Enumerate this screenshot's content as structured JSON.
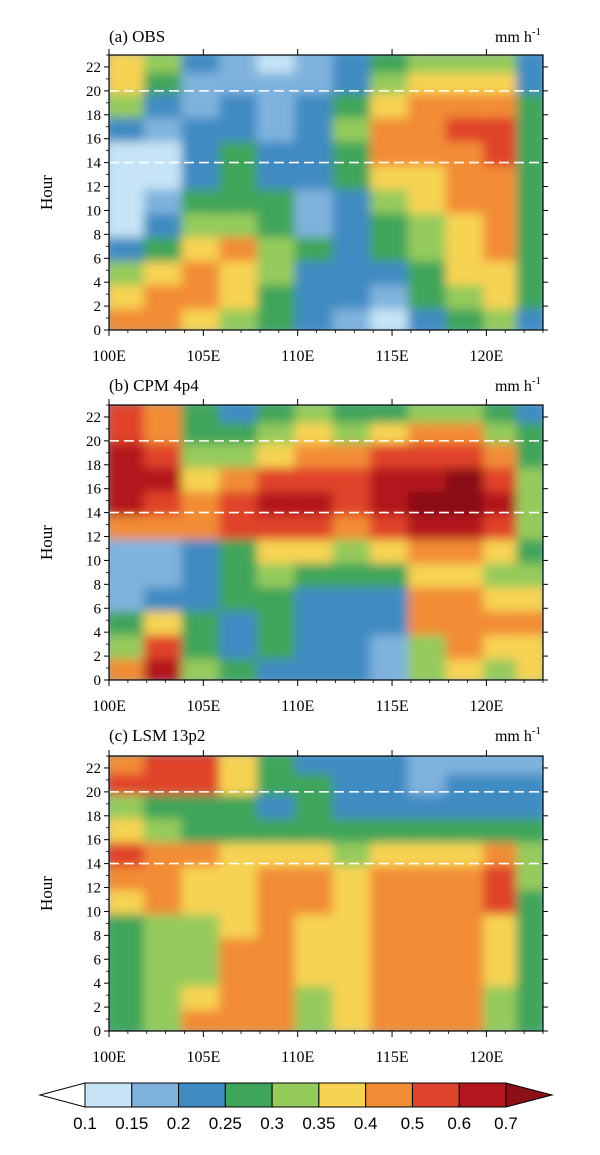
{
  "chart_data": [
    {
      "type": "heatmap",
      "title": "(a) OBS",
      "unit": "mm h",
      "unit_sup": "-1",
      "ylabel": "Hour",
      "xlabel": "",
      "x_range": [
        100,
        123
      ],
      "y_range": [
        0,
        23
      ],
      "x_ticks": [
        "100E",
        "105E",
        "110E",
        "115E",
        "120E"
      ],
      "x_tick_values": [
        100,
        105,
        110,
        115,
        120
      ],
      "y_ticks": [
        "0",
        "2",
        "4",
        "6",
        "8",
        "10",
        "12",
        "14",
        "16",
        "18",
        "20",
        "22"
      ],
      "y_tick_values": [
        0,
        2,
        4,
        6,
        8,
        10,
        12,
        14,
        16,
        18,
        20,
        22
      ],
      "reference_lines_hour": [
        14,
        20
      ],
      "x": [
        101,
        103,
        105,
        107,
        109,
        111,
        113,
        115,
        117,
        119,
        121,
        122.5
      ],
      "y": [
        1,
        3,
        5,
        7,
        9,
        11,
        13,
        15,
        17,
        19,
        21,
        22.5
      ],
      "z": [
        [
          0.4,
          0.42,
          0.38,
          0.3,
          0.25,
          0.2,
          0.18,
          0.12,
          0.2,
          0.25,
          0.32,
          0.2
        ],
        [
          0.35,
          0.4,
          0.45,
          0.35,
          0.25,
          0.22,
          0.2,
          0.18,
          0.25,
          0.3,
          0.35,
          0.25
        ],
        [
          0.3,
          0.35,
          0.42,
          0.38,
          0.3,
          0.22,
          0.2,
          0.2,
          0.28,
          0.35,
          0.38,
          0.25
        ],
        [
          0.2,
          0.28,
          0.35,
          0.4,
          0.32,
          0.25,
          0.22,
          0.25,
          0.3,
          0.35,
          0.4,
          0.25
        ],
        [
          0.12,
          0.2,
          0.3,
          0.32,
          0.25,
          0.15,
          0.2,
          0.28,
          0.32,
          0.38,
          0.42,
          0.25
        ],
        [
          0.1,
          0.15,
          0.25,
          0.28,
          0.25,
          0.15,
          0.22,
          0.32,
          0.35,
          0.4,
          0.4,
          0.25
        ],
        [
          0.1,
          0.12,
          0.22,
          0.28,
          0.22,
          0.2,
          0.25,
          0.35,
          0.38,
          0.45,
          0.48,
          0.25
        ],
        [
          0.12,
          0.1,
          0.2,
          0.25,
          0.2,
          0.22,
          0.28,
          0.4,
          0.42,
          0.48,
          0.55,
          0.25
        ],
        [
          0.2,
          0.15,
          0.2,
          0.22,
          0.18,
          0.22,
          0.3,
          0.4,
          0.45,
          0.5,
          0.5,
          0.25
        ],
        [
          0.3,
          0.2,
          0.18,
          0.2,
          0.15,
          0.2,
          0.25,
          0.35,
          0.4,
          0.45,
          0.42,
          0.25
        ],
        [
          0.35,
          0.25,
          0.18,
          0.18,
          0.15,
          0.18,
          0.22,
          0.3,
          0.35,
          0.38,
          0.35,
          0.2
        ],
        [
          0.38,
          0.3,
          0.2,
          0.15,
          0.12,
          0.15,
          0.2,
          0.25,
          0.3,
          0.32,
          0.3,
          0.2
        ]
      ]
    },
    {
      "type": "heatmap",
      "title": "(b) CPM 4p4",
      "unit": "mm h",
      "unit_sup": "-1",
      "ylabel": "Hour",
      "xlabel": "",
      "x_range": [
        100,
        123
      ],
      "y_range": [
        0,
        23
      ],
      "x_ticks": [
        "100E",
        "105E",
        "110E",
        "115E",
        "120E"
      ],
      "x_tick_values": [
        100,
        105,
        110,
        115,
        120
      ],
      "y_ticks": [
        "0",
        "2",
        "4",
        "6",
        "8",
        "10",
        "12",
        "14",
        "16",
        "18",
        "20",
        "22"
      ],
      "y_tick_values": [
        0,
        2,
        4,
        6,
        8,
        10,
        12,
        14,
        16,
        18,
        20,
        22
      ],
      "reference_lines_hour": [
        14,
        20
      ],
      "x": [
        101,
        103,
        105,
        107,
        109,
        111,
        113,
        115,
        117,
        119,
        121,
        122.5
      ],
      "y": [
        1,
        3,
        5,
        7,
        9,
        11,
        13,
        15,
        17,
        19,
        21,
        22.5
      ],
      "z": [
        [
          0.4,
          0.6,
          0.3,
          0.25,
          0.2,
          0.22,
          0.2,
          0.15,
          0.3,
          0.35,
          0.3,
          0.35
        ],
        [
          0.3,
          0.55,
          0.28,
          0.22,
          0.25,
          0.2,
          0.2,
          0.15,
          0.3,
          0.4,
          0.35,
          0.38
        ],
        [
          0.25,
          0.35,
          0.25,
          0.22,
          0.25,
          0.2,
          0.2,
          0.2,
          0.45,
          0.45,
          0.4,
          0.45
        ],
        [
          0.18,
          0.2,
          0.22,
          0.25,
          0.28,
          0.2,
          0.22,
          0.22,
          0.4,
          0.4,
          0.35,
          0.35
        ],
        [
          0.15,
          0.15,
          0.2,
          0.25,
          0.3,
          0.25,
          0.25,
          0.25,
          0.35,
          0.38,
          0.3,
          0.3
        ],
        [
          0.15,
          0.18,
          0.2,
          0.28,
          0.35,
          0.35,
          0.32,
          0.35,
          0.42,
          0.4,
          0.35,
          0.28
        ],
        [
          0.4,
          0.4,
          0.45,
          0.5,
          0.55,
          0.5,
          0.45,
          0.55,
          0.6,
          0.65,
          0.5,
          0.3
        ],
        [
          0.6,
          0.55,
          0.4,
          0.5,
          0.6,
          0.62,
          0.55,
          0.65,
          0.7,
          0.72,
          0.6,
          0.3
        ],
        [
          0.68,
          0.6,
          0.35,
          0.4,
          0.5,
          0.55,
          0.5,
          0.62,
          0.68,
          0.7,
          0.55,
          0.3
        ],
        [
          0.65,
          0.55,
          0.3,
          0.3,
          0.38,
          0.4,
          0.45,
          0.5,
          0.55,
          0.55,
          0.45,
          0.28
        ],
        [
          0.55,
          0.45,
          0.25,
          0.25,
          0.3,
          0.35,
          0.3,
          0.35,
          0.4,
          0.4,
          0.3,
          0.25
        ],
        [
          0.5,
          0.4,
          0.25,
          0.2,
          0.25,
          0.3,
          0.25,
          0.28,
          0.3,
          0.3,
          0.25,
          0.22
        ]
      ]
    },
    {
      "type": "heatmap",
      "title": "(c) LSM 13p2",
      "unit": "mm h",
      "unit_sup": "-1",
      "ylabel": "Hour",
      "xlabel": "",
      "x_range": [
        100,
        123
      ],
      "y_range": [
        0,
        23
      ],
      "x_ticks": [
        "100E",
        "105E",
        "110E",
        "115E",
        "120E"
      ],
      "x_tick_values": [
        100,
        105,
        110,
        115,
        120
      ],
      "y_ticks": [
        "0",
        "2",
        "4",
        "6",
        "8",
        "10",
        "12",
        "14",
        "16",
        "18",
        "20",
        "22"
      ],
      "y_tick_values": [
        0,
        2,
        4,
        6,
        8,
        10,
        12,
        14,
        16,
        18,
        20,
        22
      ],
      "reference_lines_hour": [
        14,
        20
      ],
      "x": [
        101,
        103,
        105,
        107,
        109,
        111,
        113,
        115,
        117,
        119,
        121,
        122.5
      ],
      "y": [
        1,
        3,
        5,
        7,
        9,
        11,
        13,
        15,
        17,
        19,
        21,
        22.5
      ],
      "z": [
        [
          0.28,
          0.3,
          0.4,
          0.42,
          0.45,
          0.3,
          0.35,
          0.45,
          0.42,
          0.4,
          0.3,
          0.25
        ],
        [
          0.25,
          0.3,
          0.35,
          0.45,
          0.48,
          0.3,
          0.35,
          0.48,
          0.45,
          0.42,
          0.32,
          0.25
        ],
        [
          0.25,
          0.3,
          0.32,
          0.42,
          0.45,
          0.35,
          0.38,
          0.45,
          0.48,
          0.45,
          0.35,
          0.25
        ],
        [
          0.25,
          0.3,
          0.3,
          0.4,
          0.48,
          0.38,
          0.35,
          0.45,
          0.48,
          0.42,
          0.35,
          0.25
        ],
        [
          0.28,
          0.32,
          0.3,
          0.38,
          0.45,
          0.38,
          0.35,
          0.45,
          0.45,
          0.4,
          0.35,
          0.25
        ],
        [
          0.38,
          0.4,
          0.35,
          0.35,
          0.42,
          0.4,
          0.38,
          0.45,
          0.45,
          0.45,
          0.5,
          0.28
        ],
        [
          0.48,
          0.42,
          0.38,
          0.38,
          0.4,
          0.4,
          0.38,
          0.4,
          0.42,
          0.45,
          0.55,
          0.3
        ],
        [
          0.5,
          0.45,
          0.4,
          0.35,
          0.35,
          0.35,
          0.32,
          0.35,
          0.35,
          0.38,
          0.4,
          0.3
        ],
        [
          0.35,
          0.3,
          0.28,
          0.25,
          0.25,
          0.28,
          0.25,
          0.25,
          0.25,
          0.25,
          0.25,
          0.25
        ],
        [
          0.3,
          0.28,
          0.25,
          0.25,
          0.22,
          0.25,
          0.22,
          0.2,
          0.2,
          0.22,
          0.22,
          0.2
        ],
        [
          0.5,
          0.55,
          0.52,
          0.35,
          0.25,
          0.25,
          0.22,
          0.2,
          0.18,
          0.2,
          0.2,
          0.2
        ],
        [
          0.45,
          0.55,
          0.55,
          0.35,
          0.25,
          0.22,
          0.22,
          0.2,
          0.18,
          0.18,
          0.18,
          0.18
        ]
      ]
    }
  ],
  "colorbar": {
    "levels": [
      "0.1",
      "0.15",
      "0.2",
      "0.25",
      "0.3",
      "0.35",
      "0.4",
      "0.5",
      "0.6",
      "0.7"
    ],
    "level_values": [
      0.1,
      0.15,
      0.2,
      0.25,
      0.3,
      0.35,
      0.4,
      0.5,
      0.6,
      0.7
    ],
    "colors": [
      "#ffffff",
      "#c6e4f6",
      "#7fb3de",
      "#3f8bc2",
      "#3fa55a",
      "#95cb5b",
      "#f7d352",
      "#f28c34",
      "#e0432b",
      "#b3161d",
      "#8a0f16"
    ]
  }
}
